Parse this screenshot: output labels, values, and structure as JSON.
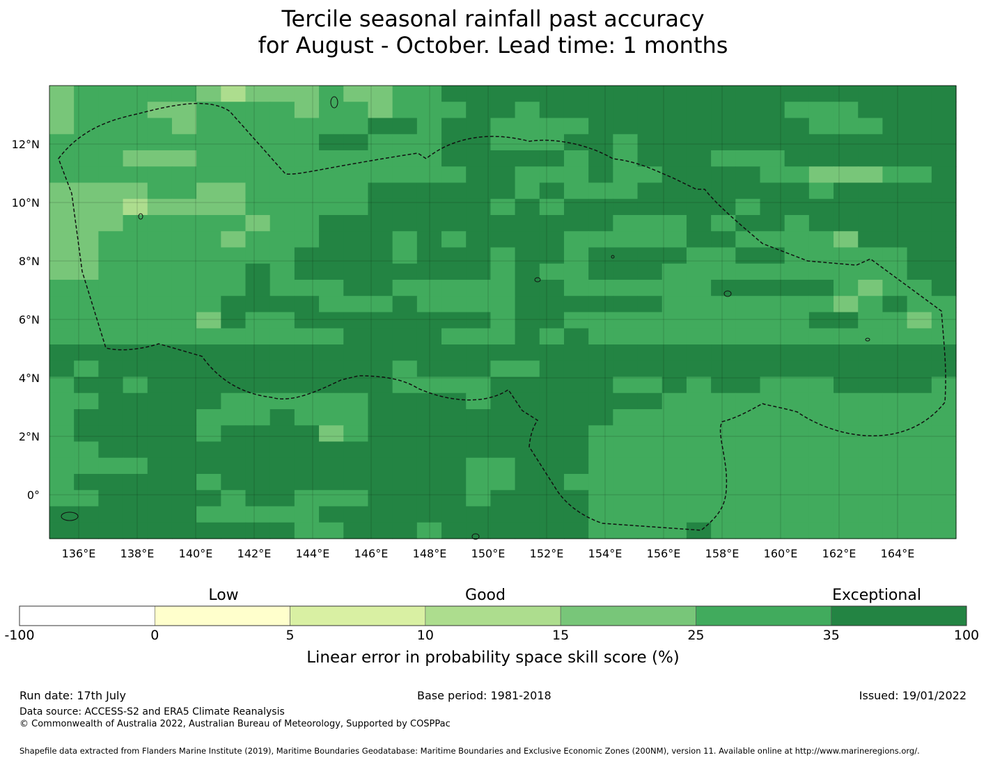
{
  "title": {
    "line1": "Tercile seasonal rainfall past accuracy",
    "line2": "for August - October. Lead time: 1 months"
  },
  "map": {
    "lon_labels": [
      "136°E",
      "138°E",
      "140°E",
      "142°E",
      "144°E",
      "146°E",
      "148°E",
      "150°E",
      "152°E",
      "154°E",
      "156°E",
      "158°E",
      "160°E",
      "162°E",
      "164°E"
    ],
    "lat_labels": [
      "12°N",
      "10°N",
      "8°N",
      "6°N",
      "4°N",
      "2°N",
      "0°"
    ],
    "grid": {
      "lon_start": 135,
      "lat_top": 14.0,
      "cell_deg": 0.833,
      "rows": [
        "4555554344454455666666666666666666666",
        "4555445555455455566566666666665556666",
        "4555545555555665665555666666666555666",
        "5555555555566555665556656666666666666",
        "5554445555555555666665656665556666666",
        "5555555555555555566555655666655444556",
        "4444554455555666666565556666666766666",
        "4443444455555666665656666666566666666",
        "4445555545566666666666655565665666666",
        "4455555455566656566665555566555546666",
        "4455555555666656665665666655665555566",
        "4455555565666666665655666555555555566",
        "5555555565556655555665555556666654556",
        "5555555666655565557666666555555545655",
        "5555554655666666665665555555555665545",
        "5555555555556666555656555555555555555",
        "6666666666666666666666666666666666666",
        "6766666666666676667766666666666666666",
        "7667666666666657776666655656677766667",
        "7766666555555666676666666777777777777",
        "7666665556555666666666677777777777777",
        "7666667666645666666666777777777777777",
        "7766666666666666666666777777777777777",
        "7777666666666666677666777777777777777",
        "7666667666666666677667777777777777777",
        "7766666566555666676666777777777777777",
        "6666665555566666666666777777777777777",
        "6666666666556665666666777767777777777"
      ]
    }
  },
  "colorbar": {
    "category_labels": [
      "Low",
      "Good",
      "Exceptional"
    ],
    "ticks": [
      "-100",
      "0",
      "5",
      "10",
      "15",
      "25",
      "35",
      "100"
    ],
    "colors": [
      "#ffffff",
      "#ffffcc",
      "#d9f0a3",
      "#addd8e",
      "#78c679",
      "#41ab5d",
      "#238443"
    ],
    "label": "Linear error in probability space skill score (%)"
  },
  "footer": {
    "run_date": "Run date: 17th July",
    "base_period": "Base period: 1981-2018",
    "issued": "Issued: 19/01/2022",
    "data_source": "Data source: ACCESS-S2 and ERA5 Climate Reanalysis",
    "copyright": "© Commonwealth of Australia 2022, Australian Bureau of Meteorology, Supported by COSPPac",
    "shapefile_note": "Shapefile data extracted from Flanders Marine Institute (2019), Maritime Boundaries Geodatabase: Maritime Boundaries and Exclusive Economic Zones (200NM), version 11. Available online at http://www.marineregions.org/."
  }
}
